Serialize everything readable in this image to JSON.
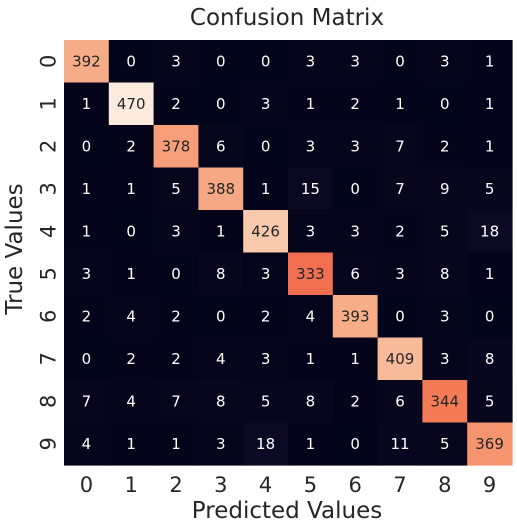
{
  "chart_data": {
    "type": "heatmap",
    "title": "Confusion Matrix",
    "xlabel": "Predicted Values",
    "ylabel": "True Values",
    "x_categories": [
      "0",
      "1",
      "2",
      "3",
      "4",
      "5",
      "6",
      "7",
      "8",
      "9"
    ],
    "y_categories": [
      "0",
      "1",
      "2",
      "3",
      "4",
      "5",
      "6",
      "7",
      "8",
      "9"
    ],
    "values": [
      [
        392,
        0,
        3,
        0,
        0,
        3,
        3,
        0,
        3,
        1
      ],
      [
        1,
        470,
        2,
        0,
        3,
        1,
        2,
        1,
        0,
        1
      ],
      [
        0,
        2,
        378,
        6,
        0,
        3,
        3,
        7,
        2,
        1
      ],
      [
        1,
        1,
        5,
        388,
        1,
        15,
        0,
        7,
        9,
        5
      ],
      [
        1,
        0,
        3,
        1,
        426,
        3,
        3,
        2,
        5,
        18
      ],
      [
        3,
        1,
        0,
        8,
        3,
        333,
        6,
        3,
        8,
        1
      ],
      [
        2,
        4,
        2,
        0,
        2,
        4,
        393,
        0,
        3,
        0
      ],
      [
        0,
        2,
        2,
        4,
        3,
        1,
        1,
        409,
        3,
        8
      ],
      [
        7,
        4,
        7,
        8,
        5,
        8,
        2,
        6,
        344,
        5
      ],
      [
        4,
        1,
        1,
        3,
        18,
        1,
        0,
        11,
        5,
        369
      ]
    ],
    "colormap": "rocket",
    "colorbar": false,
    "grid": false
  }
}
